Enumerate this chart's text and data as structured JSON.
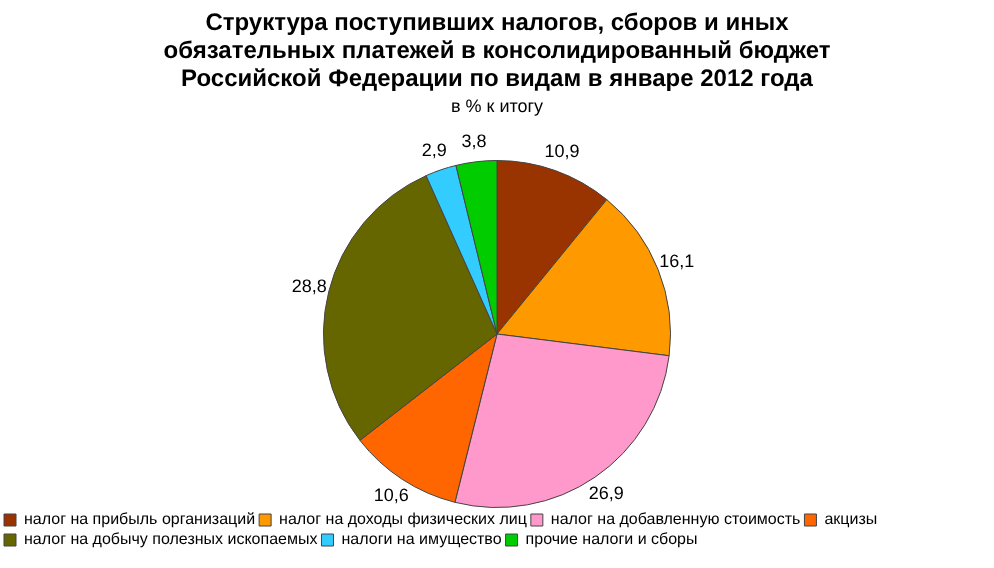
{
  "chart_data": {
    "type": "pie",
    "title": "Структура поступивших налогов, сборов и иных обязательных платежей в консолидированный бюджет Российской Федерации по видам в январе 2012 года",
    "subtitle": "в % к итогу",
    "categories": [
      "налог на прибыль организаций",
      "налог на доходы физических лиц",
      "налог на добавленную стоимость",
      "акцизы",
      "налог на добычу полезных ископаемых",
      "налоги на имущество",
      "прочие налоги и сборы"
    ],
    "values": [
      10.9,
      16.1,
      26.9,
      10.6,
      28.8,
      2.9,
      3.8
    ],
    "value_labels": [
      "10,9",
      "16,1",
      "26,9",
      "10,6",
      "28,8",
      "2,9",
      "3,8"
    ],
    "colors": [
      "#993300",
      "#ff9900",
      "#ff99cc",
      "#ff6600",
      "#666600",
      "#33ccff",
      "#00cc00"
    ],
    "legend": "bottom"
  }
}
